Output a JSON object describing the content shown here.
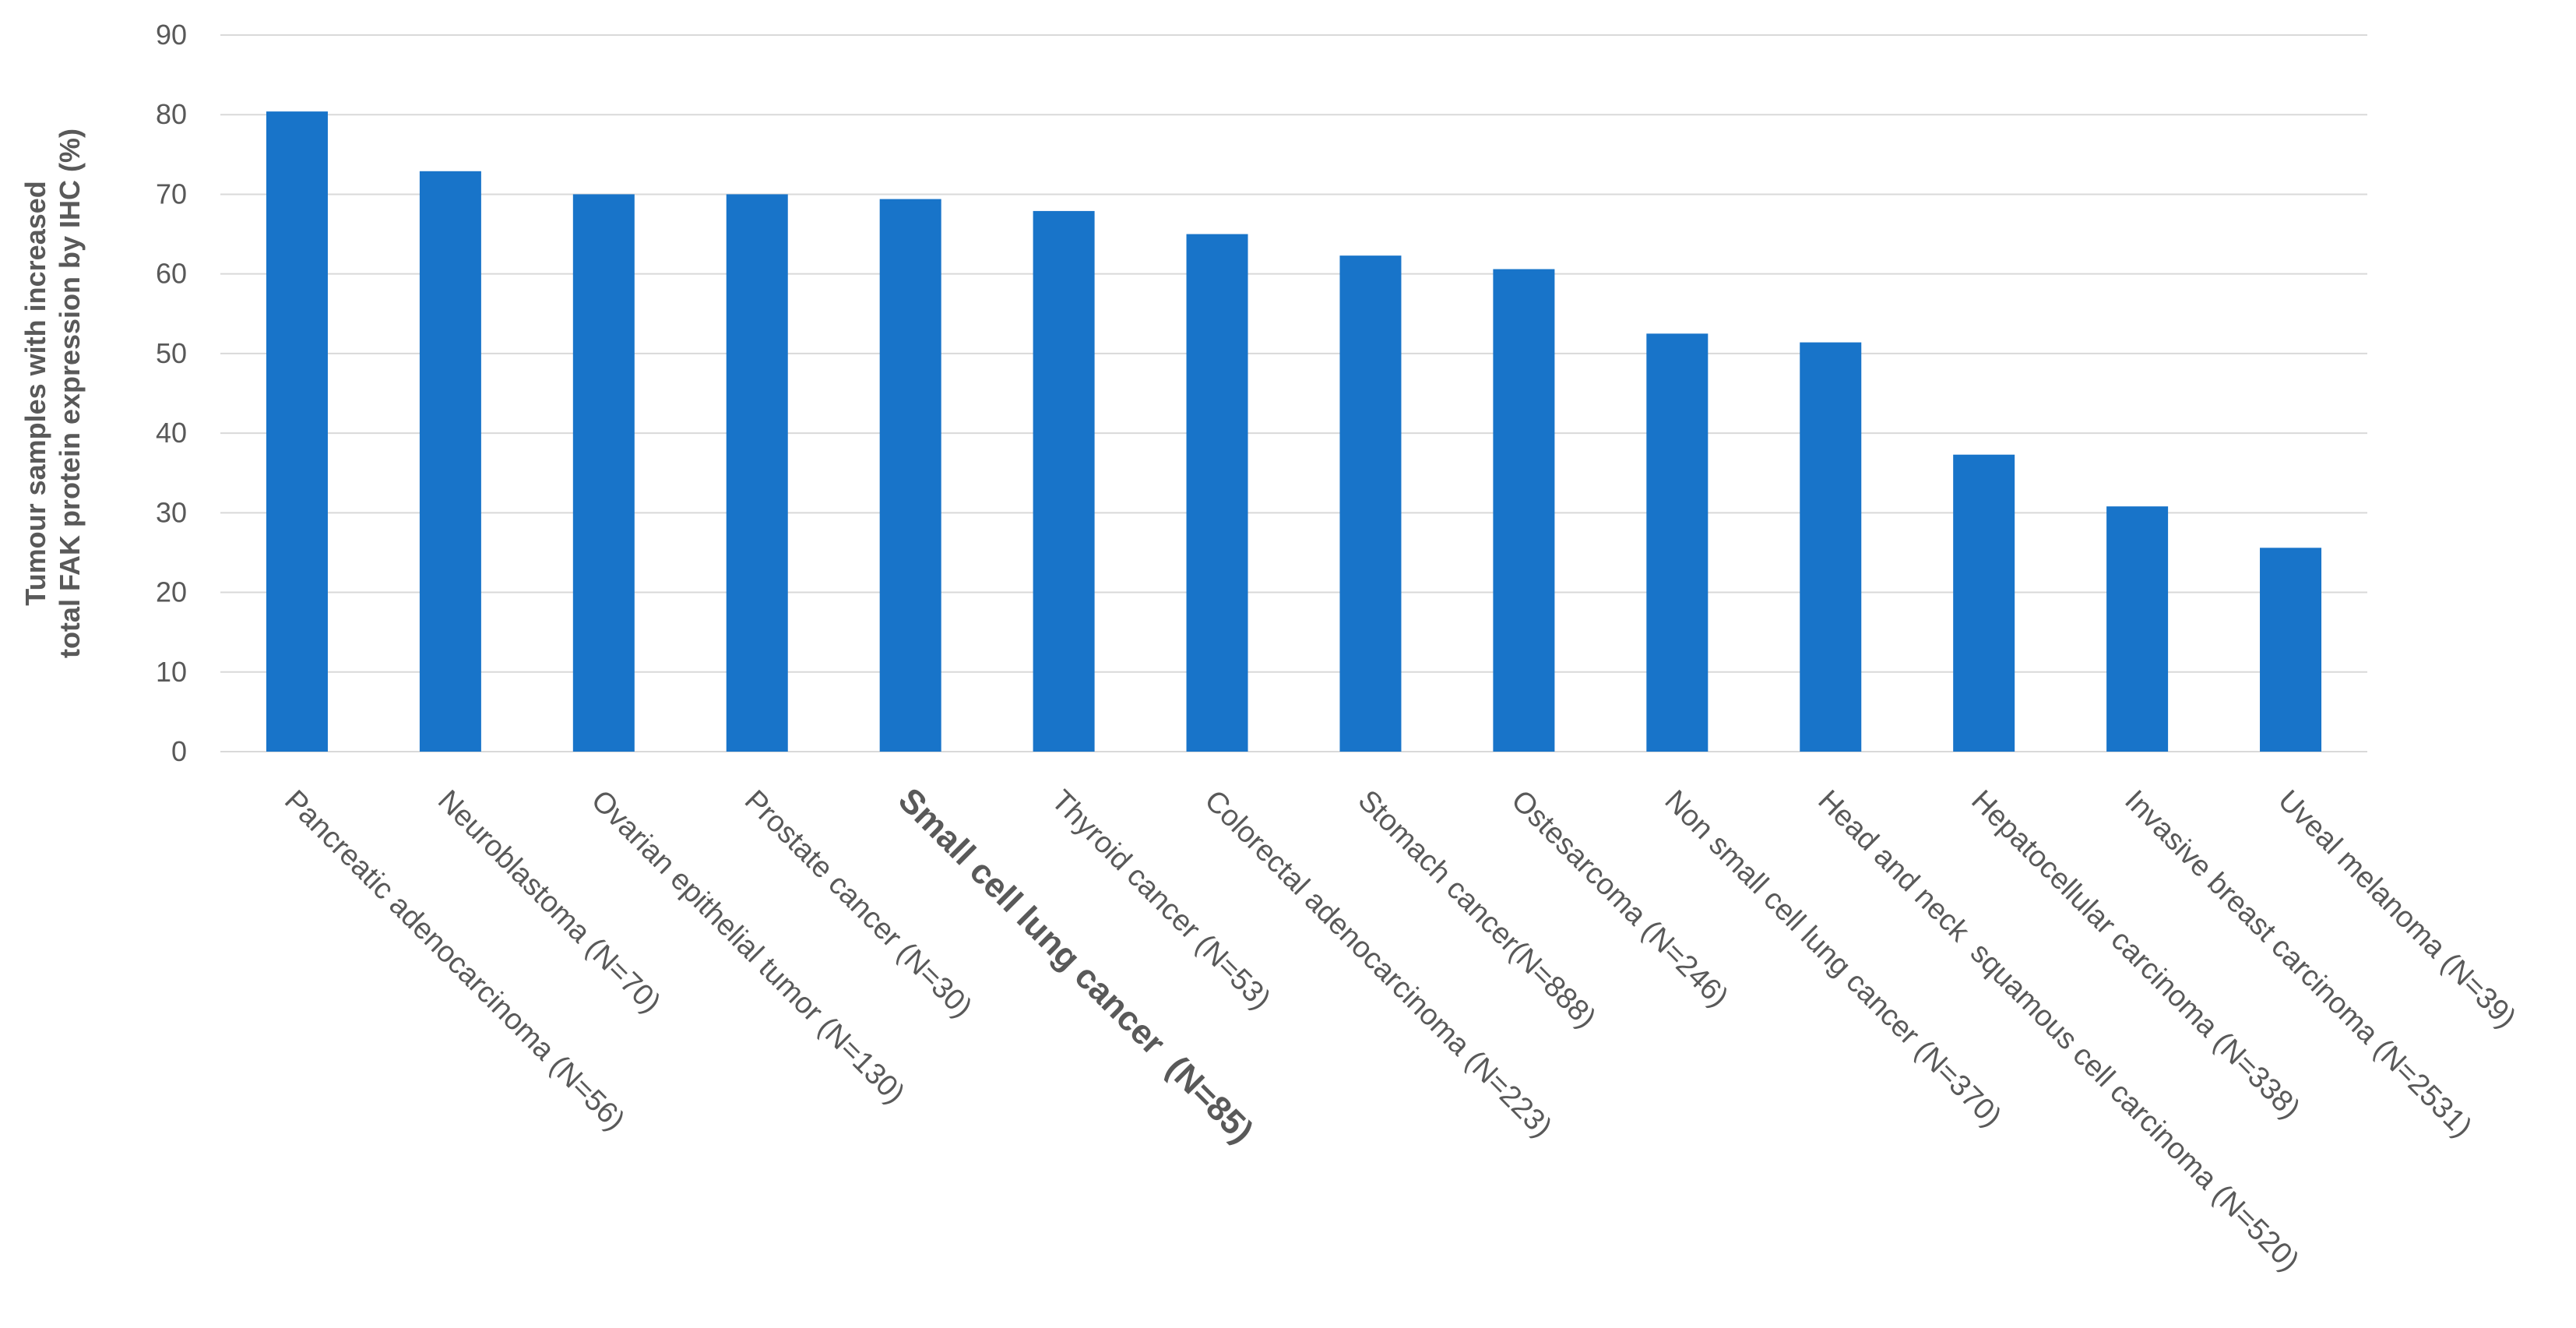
{
  "chart_data": {
    "type": "bar",
    "title": "",
    "xlabel": "",
    "ylabel_lines": [
      "Tumour samples with increased",
      "total FAK protein expression  by  IHC (%)"
    ],
    "ylim": [
      0,
      90
    ],
    "yticks": [
      0,
      10,
      20,
      30,
      40,
      50,
      60,
      70,
      80,
      90
    ],
    "grid": true,
    "legend": "none",
    "categories": [
      "Pancreatic adenocarcinoma (N=56)",
      "Neuroblastoma (N=70)",
      "Ovarian epithelial tumor (N=130)",
      "Prostate cancer (N=30)",
      "Small cell lung cancer  (N=85)",
      "Thyroid cancer (N=53)",
      "Colorectal adenocarcinoma (N=223)",
      "Stomach cancer(N=888)",
      "Ostesarcoma (N=246)",
      "Non small cell lung cancer (N=370)",
      "Head and neck  squamous cell carcinoma (N=520)",
      "Hepatocellular carcinoma (N=338)",
      "Invasive breast carcinoma (N=2531)",
      "Uveal melanoma (N=39)"
    ],
    "values": [
      80.4,
      72.9,
      70.0,
      70.0,
      69.4,
      67.9,
      65.0,
      62.3,
      60.6,
      52.5,
      51.4,
      37.3,
      30.8,
      25.6
    ],
    "highlight_index": 4,
    "colors": {
      "bar": "#1874C9",
      "highlight_label": "#FF0000",
      "label": "#595959",
      "grid": "#D9D9D9"
    }
  }
}
